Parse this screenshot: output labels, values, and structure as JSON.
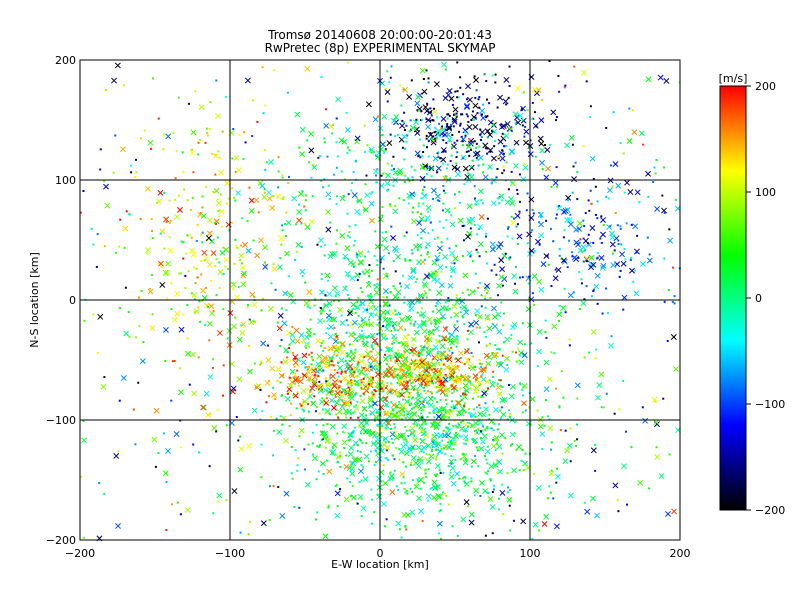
{
  "chart_data": {
    "type": "scatter",
    "title": "Tromsø 20140608 20:00:00-20:01:43",
    "subtitle": "RwPretec (8p) EXPERIMENTAL SKYMAP",
    "xlabel": "E-W location [km]",
    "ylabel": "N-S location [km]",
    "xlim": [
      -200,
      200
    ],
    "ylim": [
      -200,
      200
    ],
    "xticks": [
      "−200",
      "−100",
      "0",
      "100",
      "200"
    ],
    "yticks": [
      "−200",
      "−100",
      "0",
      "100",
      "200"
    ],
    "grid": true,
    "colorbar": {
      "title": "[m/s]",
      "range": [
        -200,
        200
      ],
      "ticks": [
        "200",
        "100",
        "0",
        "−100",
        "−200"
      ],
      "colors": [
        "#ff0000",
        "#ffff00",
        "#00ff00",
        "#00ffff",
        "#0000ff",
        "#000000"
      ],
      "placement": "right"
    },
    "markers": [
      "x",
      "dot"
    ],
    "clusters": [
      {
        "region": "center",
        "x": 10,
        "y": -20,
        "spread": [
          45,
          55
        ],
        "value": 10
      },
      {
        "region": "south-center",
        "x": 30,
        "y": -110,
        "spread": [
          45,
          40
        ],
        "value": 20
      },
      {
        "region": "west-southwest",
        "x": -30,
        "y": -65,
        "spread": [
          25,
          15
        ],
        "value": 150
      },
      {
        "region": "center-south red",
        "x": 35,
        "y": -60,
        "spread": [
          20,
          12
        ],
        "value": 140
      },
      {
        "region": "north-northeast",
        "x": 55,
        "y": 145,
        "spread": [
          25,
          20
        ],
        "value": -170
      },
      {
        "region": "northeast",
        "x": 130,
        "y": 50,
        "spread": [
          45,
          35
        ],
        "value": -100
      },
      {
        "region": "west",
        "x": -110,
        "y": 40,
        "spread": [
          30,
          60
        ],
        "value": 110
      },
      {
        "region": "center-north",
        "x": 20,
        "y": 110,
        "spread": [
          45,
          30
        ],
        "value": -20
      }
    ]
  }
}
